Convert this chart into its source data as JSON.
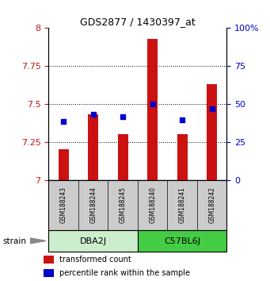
{
  "title": "GDS2877 / 1430397_at",
  "samples": [
    "GSM188243",
    "GSM188244",
    "GSM188245",
    "GSM188240",
    "GSM188241",
    "GSM188242"
  ],
  "bar_values": [
    7.2,
    7.43,
    7.3,
    7.93,
    7.3,
    7.63
  ],
  "percentile_values": [
    7.384,
    7.432,
    7.418,
    7.5,
    7.395,
    7.468
  ],
  "bar_bottom": 7.0,
  "ylim": [
    7.0,
    8.0
  ],
  "yticks_left": [
    7.0,
    7.25,
    7.5,
    7.75,
    8.0
  ],
  "ytick_labels_left": [
    "7",
    "7.25",
    "7.5",
    "7.75",
    "8"
  ],
  "right_yticks": [
    0,
    25,
    50,
    75,
    100
  ],
  "right_ytick_labels": [
    "0",
    "25",
    "50",
    "75",
    "100%"
  ],
  "bar_color": "#cc1111",
  "dot_color": "#0000cc",
  "groups": [
    {
      "label": "DBA2J",
      "indices": [
        0,
        1,
        2
      ],
      "color": "#cceecc"
    },
    {
      "label": "C57BL6J",
      "indices": [
        3,
        4,
        5
      ],
      "color": "#44cc44"
    }
  ],
  "group_bg_color": "#cccccc",
  "left_label_color": "#cc1111",
  "right_label_color": "#0000cc",
  "title_color": "#000000",
  "legend_items": [
    {
      "label": "transformed count",
      "color": "#cc1111"
    },
    {
      "label": "percentile rank within the sample",
      "color": "#0000cc"
    }
  ],
  "bar_width": 0.35
}
